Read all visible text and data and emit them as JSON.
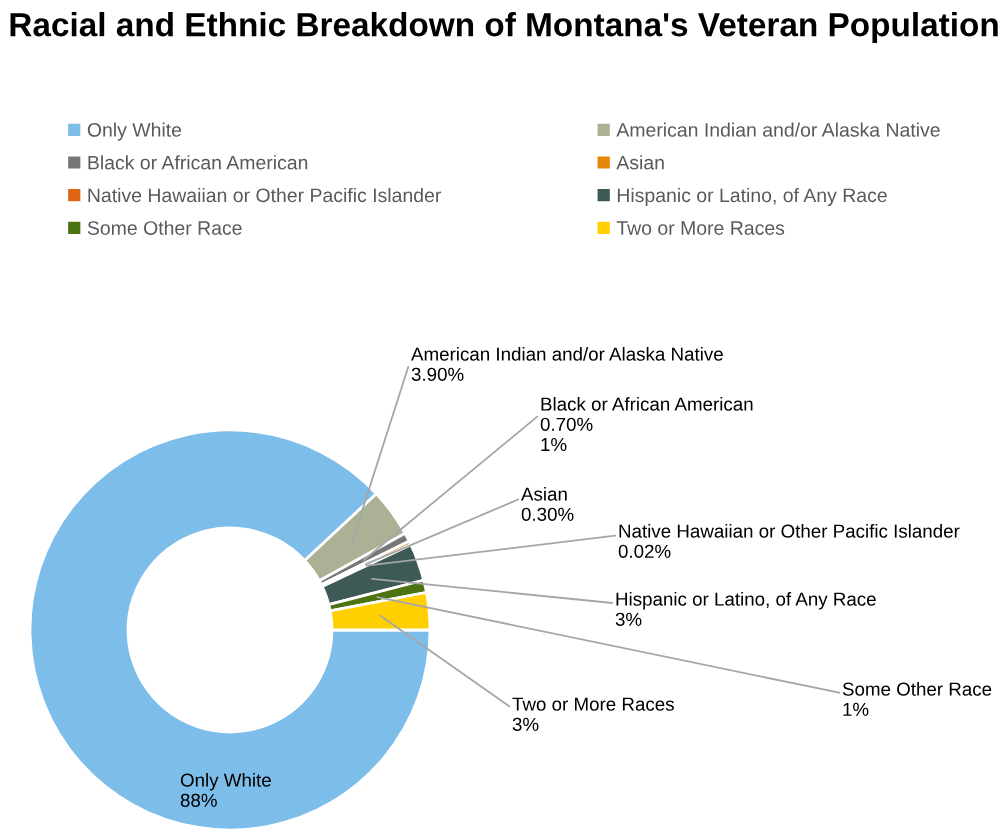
{
  "chart_data": {
    "type": "donut",
    "title": "Racial and Ethnic Breakdown of Montana's Veteran Population",
    "categories": [
      "Only White",
      "American Indian and/or Alaska Native",
      "Black or African American",
      "Asian",
      "Native Hawaiian or Other Pacific Islander",
      "Hispanic or Latino, of Any Race",
      "Some Other Race",
      "Two or More Races"
    ],
    "values": [
      88,
      3.9,
      0.7,
      0.3,
      0.02,
      3,
      1,
      3
    ],
    "colors": [
      "#7dbde9",
      "#aab195",
      "#777777",
      "#e8860a",
      "#df6514",
      "#3d5a56",
      "#4b7411",
      "#ffcf00"
    ],
    "value_labels": [
      "88%",
      "3.90%",
      "0.70%\n1%",
      "0.30%",
      "0.02%",
      "3%",
      "1%",
      "3%"
    ],
    "legend": "top"
  }
}
